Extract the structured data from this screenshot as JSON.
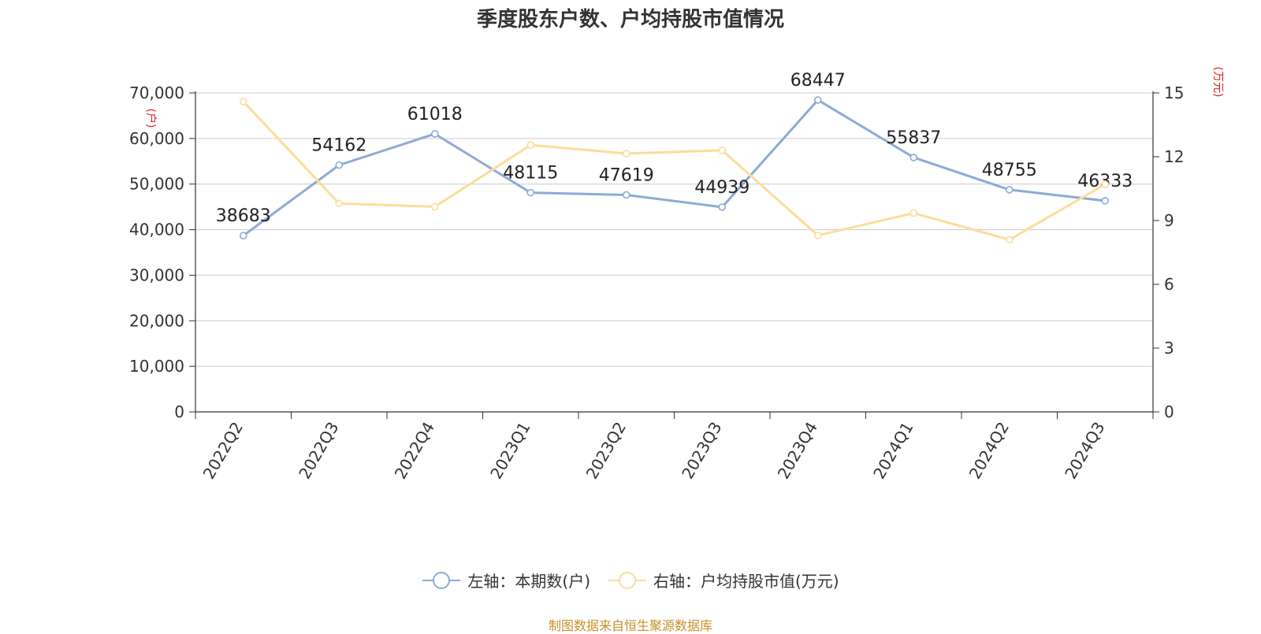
{
  "chart_data": {
    "type": "line",
    "title": "季度股东户数、户均持股市值情况",
    "categories": [
      "2022Q2",
      "2022Q3",
      "2022Q4",
      "2023Q1",
      "2023Q2",
      "2023Q3",
      "2023Q4",
      "2024Q1",
      "2024Q2",
      "2024Q3"
    ],
    "left_axis": {
      "unit": "(户)",
      "min": 0,
      "max": 70000,
      "tick_labels": [
        "0",
        "10,000",
        "20,000",
        "30,000",
        "40,000",
        "50,000",
        "60,000",
        "70,000"
      ]
    },
    "right_axis": {
      "unit": "(万元)",
      "min": 0,
      "max": 15,
      "tick_labels": [
        "0",
        "3",
        "6",
        "9",
        "12",
        "15"
      ]
    },
    "series": [
      {
        "name": "左轴：本期数(户)",
        "axis": "left",
        "color": "#8eaad6",
        "values": [
          38683,
          54162,
          61018,
          48115,
          47619,
          44939,
          68447,
          55837,
          48755,
          46333
        ],
        "data_labels": [
          "38683",
          "54162",
          "61018",
          "48115",
          "47619",
          "44939",
          "68447",
          "55837",
          "48755",
          "46333"
        ]
      },
      {
        "name": "右轴：户均持股市值(万元)",
        "axis": "right",
        "color": "#fddc9a",
        "values": [
          14.6,
          9.8,
          9.65,
          12.55,
          12.15,
          12.3,
          8.3,
          9.35,
          8.1,
          10.7
        ]
      }
    ],
    "grid": true,
    "legend": "bottom-center",
    "source": "制图数据来自恒生聚源数据库",
    "colors": {
      "axis_unit": "#e02020",
      "source": "#c8902a",
      "text": "#333333",
      "grid": "#cccccc"
    }
  }
}
